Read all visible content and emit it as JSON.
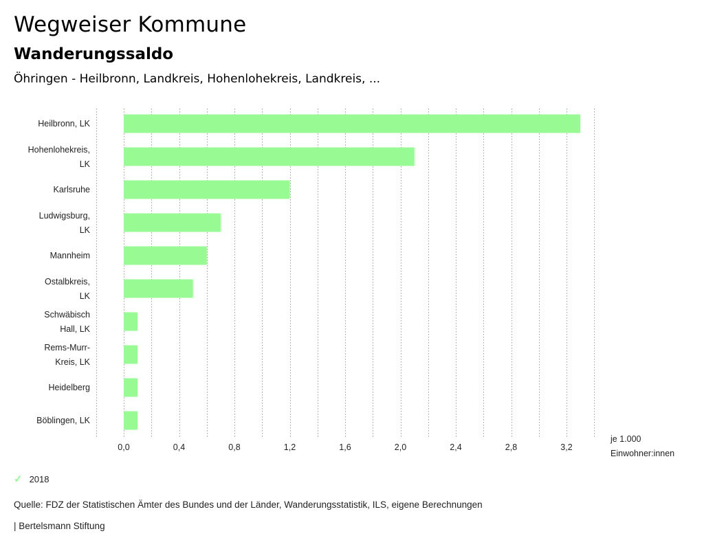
{
  "header": {
    "title": "Wegweiser Kommune",
    "subtitle": "Wanderungssaldo",
    "region": "Öhringen - Heilbronn, Landkreis, Hohenlohekreis, Landkreis, ..."
  },
  "chart_data": {
    "type": "bar",
    "orientation": "horizontal",
    "categories": [
      [
        "Heilbronn, LK"
      ],
      [
        "Hohenlohekreis,",
        "LK"
      ],
      [
        "Karlsruhe"
      ],
      [
        "Ludwigsburg,",
        "LK"
      ],
      [
        "Mannheim"
      ],
      [
        "Ostalbkreis,",
        "LK"
      ],
      [
        "Schwäbisch",
        "Hall, LK"
      ],
      [
        "Rems-Murr-",
        "Kreis, LK"
      ],
      [
        "Heidelberg"
      ],
      [
        "Böblingen, LK"
      ]
    ],
    "series": [
      {
        "name": "2018",
        "values": [
          3.3,
          2.1,
          1.2,
          0.7,
          0.6,
          0.5,
          0.1,
          0.1,
          0.1,
          0.1
        ]
      }
    ],
    "xlim": [
      -0.2,
      3.4
    ],
    "xticks": [
      0.0,
      0.4,
      0.8,
      1.2,
      1.6,
      2.0,
      2.4,
      2.8,
      3.2
    ],
    "xtick_labels": [
      "0,0",
      "0,4",
      "0,8",
      "1,2",
      "1,6",
      "2,0",
      "2,4",
      "2,8",
      "3,2"
    ],
    "unit_label": [
      "je 1.000",
      "Einwohner:innen"
    ],
    "bar_color": "#98fa93",
    "grid": "vertical dotted"
  },
  "legend": {
    "marker": "✓",
    "label": "2018"
  },
  "footer": {
    "source": "Quelle: FDZ der Statistischen Ämter des Bundes und der Länder, Wanderungsstatistik, ILS, eigene Berechnungen",
    "brand": "| Bertelsmann Stiftung"
  }
}
